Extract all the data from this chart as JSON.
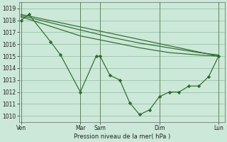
{
  "background_color": "#cce8d8",
  "grid_color": "#99c4aa",
  "line_color": "#2d6a2d",
  "marker_color": "#2d6a2d",
  "xlabel": "Pression niveau de la mer( hPa )",
  "ylim": [
    1009.5,
    1019.5
  ],
  "yticks": [
    1010,
    1011,
    1012,
    1013,
    1014,
    1015,
    1016,
    1017,
    1018,
    1019
  ],
  "xlim": [
    -0.1,
    10.3
  ],
  "xtick_positions": [
    0,
    3.0,
    4.0,
    7.0,
    10.0
  ],
  "xtick_labels": [
    "Ven",
    "Mar",
    "Sam",
    "Dim",
    "Lun"
  ],
  "vlines": [
    0,
    3.0,
    4.0,
    7.0,
    10.0
  ],
  "line1_x": [
    0.0,
    10.0
  ],
  "line1_y": [
    1018.5,
    1015.0
  ],
  "line2_x": [
    0.0,
    1.5,
    3.0,
    4.5,
    6.0,
    7.5,
    9.0,
    10.0
  ],
  "line2_y": [
    1018.4,
    1017.8,
    1017.2,
    1016.6,
    1016.1,
    1015.7,
    1015.3,
    1015.1
  ],
  "line3_x": [
    0.0,
    1.5,
    3.0,
    4.5,
    6.0,
    7.5,
    9.0,
    10.0
  ],
  "line3_y": [
    1018.3,
    1017.5,
    1016.7,
    1016.2,
    1015.7,
    1015.3,
    1015.1,
    1015.0
  ],
  "line4_x": [
    0.0,
    0.4,
    1.5,
    2.0,
    3.0,
    3.8,
    4.0,
    4.5,
    5.0,
    5.5,
    6.0,
    6.5,
    7.0,
    7.5,
    8.0,
    8.5,
    9.0,
    9.5,
    10.0
  ],
  "line4_y": [
    1018.0,
    1018.5,
    1016.2,
    1015.1,
    1012.0,
    1015.0,
    1015.0,
    1013.4,
    1013.0,
    1011.1,
    1010.1,
    1010.5,
    1011.6,
    1012.0,
    1012.0,
    1012.5,
    1012.5,
    1013.3,
    1015.0
  ],
  "line4_marker_x": [
    0.0,
    0.4,
    1.5,
    2.0,
    3.0,
    3.8,
    4.5,
    5.0,
    5.5,
    6.0,
    6.5,
    7.0,
    7.5,
    8.0,
    8.5,
    9.0,
    9.5,
    10.0
  ],
  "line4_marker_y": [
    1018.0,
    1018.5,
    1016.2,
    1015.1,
    1012.0,
    1015.0,
    1013.4,
    1013.0,
    1011.1,
    1010.1,
    1010.5,
    1011.6,
    1012.0,
    1012.0,
    1012.5,
    1012.5,
    1013.3,
    1015.0
  ]
}
